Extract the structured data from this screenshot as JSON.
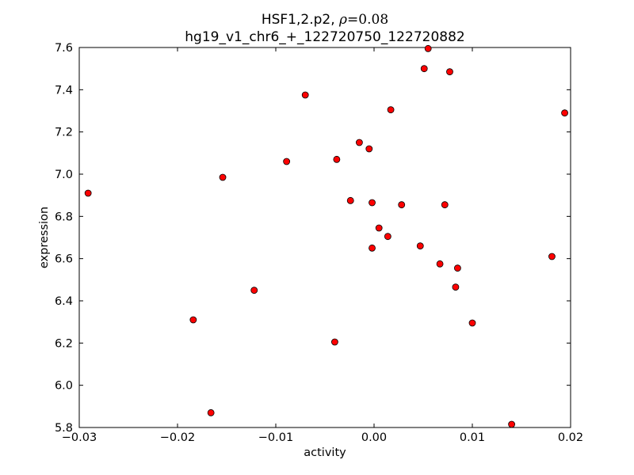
{
  "chart_data": {
    "type": "scatter",
    "title_line1_prefix": "HSF1,2.p2, ",
    "title_line1_rho": "ρ",
    "title_line1_value": "=0.08",
    "title_line2": "hg19_v1_chr6_+_122720750_122720882",
    "xlabel": "activity",
    "ylabel": "expression",
    "xlim": [
      -0.03,
      0.02
    ],
    "ylim": [
      5.8,
      7.6
    ],
    "xticks": [
      -0.03,
      -0.02,
      -0.01,
      0.0,
      0.01,
      0.02
    ],
    "xtick_labels": [
      "−0.03",
      "−0.02",
      "−0.01",
      "0.00",
      "0.01",
      "0.02"
    ],
    "yticks": [
      5.8,
      6.0,
      6.2,
      6.4,
      6.6,
      6.8,
      7.0,
      7.2,
      7.4,
      7.6
    ],
    "ytick_labels": [
      "5.8",
      "6.0",
      "6.2",
      "6.4",
      "6.6",
      "6.8",
      "7.0",
      "7.2",
      "7.4",
      "7.6"
    ],
    "grid": false,
    "marker_color": "#ff0000",
    "marker_edge": "#000000",
    "points": [
      {
        "x": -0.0291,
        "y": 6.91
      },
      {
        "x": -0.0184,
        "y": 6.31
      },
      {
        "x": -0.0166,
        "y": 5.87
      },
      {
        "x": -0.0154,
        "y": 6.985
      },
      {
        "x": -0.0122,
        "y": 6.45
      },
      {
        "x": -0.0089,
        "y": 7.06
      },
      {
        "x": -0.007,
        "y": 7.375
      },
      {
        "x": -0.004,
        "y": 6.205
      },
      {
        "x": -0.0038,
        "y": 7.07
      },
      {
        "x": -0.0024,
        "y": 6.875
      },
      {
        "x": -0.0015,
        "y": 7.15
      },
      {
        "x": -0.0005,
        "y": 7.12
      },
      {
        "x": -0.0002,
        "y": 6.865
      },
      {
        "x": -0.0002,
        "y": 6.65
      },
      {
        "x": 0.0005,
        "y": 6.745
      },
      {
        "x": 0.0014,
        "y": 6.705
      },
      {
        "x": 0.0017,
        "y": 7.305
      },
      {
        "x": 0.0028,
        "y": 6.855
      },
      {
        "x": 0.0047,
        "y": 6.66
      },
      {
        "x": 0.0051,
        "y": 7.5
      },
      {
        "x": 0.0055,
        "y": 7.595
      },
      {
        "x": 0.0067,
        "y": 6.575
      },
      {
        "x": 0.0072,
        "y": 6.855
      },
      {
        "x": 0.0077,
        "y": 7.485
      },
      {
        "x": 0.0083,
        "y": 6.465
      },
      {
        "x": 0.0085,
        "y": 6.555
      },
      {
        "x": 0.01,
        "y": 6.295
      },
      {
        "x": 0.014,
        "y": 5.815
      },
      {
        "x": 0.0181,
        "y": 6.61
      },
      {
        "x": 0.0194,
        "y": 7.29
      }
    ]
  }
}
